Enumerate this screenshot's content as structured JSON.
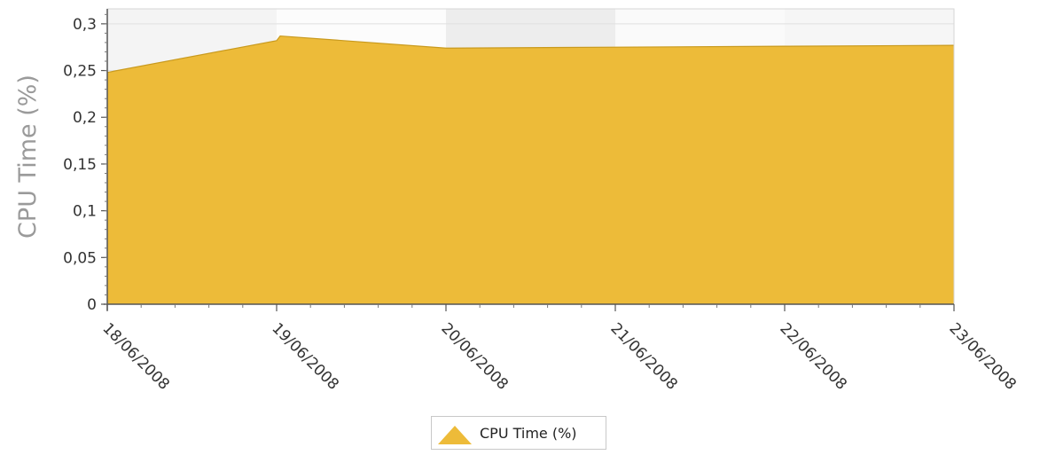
{
  "chart_data": {
    "type": "area",
    "title": "",
    "xlabel": "",
    "ylabel": "CPU Time (%)",
    "x_ticks": [
      "18/06/2008",
      "19/06/2008",
      "20/06/2008",
      "21/06/2008",
      "22/06/2008",
      "23/06/2008"
    ],
    "y_ticks": [
      "0",
      "0,05",
      "0,1",
      "0,15",
      "0,2",
      "0,25",
      "0,3"
    ],
    "ylim": [
      0,
      0.316
    ],
    "xlim": [
      "18/06/2008",
      "23/06/2008"
    ],
    "grid": true,
    "legend_position": "bottom-center",
    "series": [
      {
        "name": "CPU Time (%)",
        "color": "#EDBB39",
        "points": [
          {
            "x": "18/06/2008 00:00",
            "y": 0.248
          },
          {
            "x": "19/06/2008 00:00",
            "y": 0.282
          },
          {
            "x": "19/06/2008 00:30",
            "y": 0.287
          },
          {
            "x": "20/06/2008 00:00",
            "y": 0.274
          },
          {
            "x": "21/06/2008 00:00",
            "y": 0.275
          },
          {
            "x": "22/06/2008 00:00",
            "y": 0.276
          },
          {
            "x": "23/06/2008 00:00",
            "y": 0.277
          }
        ]
      }
    ]
  }
}
